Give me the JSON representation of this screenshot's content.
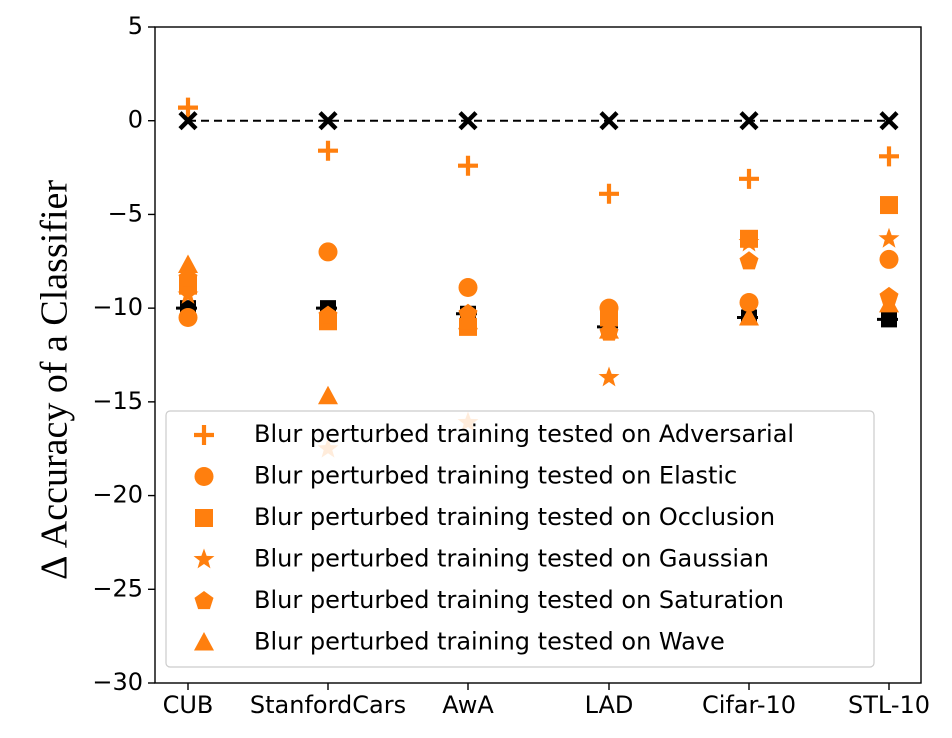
{
  "chart_data": {
    "type": "scatter",
    "title": "",
    "xlabel": "",
    "ylabel": "Δ Accuracy of a Classifier",
    "categories": [
      "CUB",
      "StanfordCars",
      "AwA",
      "LAD",
      "Cifar-10",
      "STL-10"
    ],
    "ylim": [
      -30,
      5
    ],
    "yticks": [
      5,
      0,
      -5,
      -10,
      -15,
      -20,
      -25,
      -30
    ],
    "ytick_labels": [
      "5",
      "0",
      "−5",
      "−10",
      "−15",
      "−20",
      "−25",
      "−30"
    ],
    "grid": false,
    "legend_position": "lower-center",
    "baseline": {
      "values": [
        0,
        0,
        0,
        0,
        0,
        0
      ],
      "color": "#000000",
      "style": "dashed",
      "marker": "x"
    },
    "black_reference": {
      "values": [
        -10,
        -10,
        -10.3,
        -11,
        -10.5,
        -10.6
      ],
      "color": "#000000"
    },
    "series": [
      {
        "name": "Blur perturbed training tested on Adversarial",
        "marker": "plus",
        "color": "#ff7f0e",
        "values": [
          0.7,
          -1.6,
          -2.4,
          -3.9,
          -3.1,
          -1.9
        ]
      },
      {
        "name": "Blur perturbed training tested on Elastic",
        "marker": "circle",
        "color": "#ff7f0e",
        "values": [
          -10.5,
          -7.0,
          -8.9,
          -10.0,
          -9.7,
          -7.4
        ]
      },
      {
        "name": "Blur perturbed training tested on Occlusion",
        "marker": "square",
        "color": "#ff7f0e",
        "values": [
          -8.8,
          -10.7,
          -11.0,
          -10.5,
          -6.3,
          -4.5
        ]
      },
      {
        "name": "Blur perturbed training tested on Gaussian",
        "marker": "star",
        "color": "#ff7f0e",
        "values": [
          -9.3,
          -17.5,
          -16.1,
          -13.7,
          -6.5,
          -6.3
        ]
      },
      {
        "name": "Blur perturbed training tested on Saturation",
        "marker": "pentagon",
        "color": "#ff7f0e",
        "values": [
          -8.4,
          -10.4,
          -10.3,
          -11.3,
          -7.5,
          -9.4
        ]
      },
      {
        "name": "Blur perturbed training tested on Wave",
        "marker": "triangle",
        "color": "#ff7f0e",
        "values": [
          -7.7,
          -14.7,
          -10.7,
          -11.2,
          -10.5,
          -9.8
        ]
      }
    ]
  }
}
